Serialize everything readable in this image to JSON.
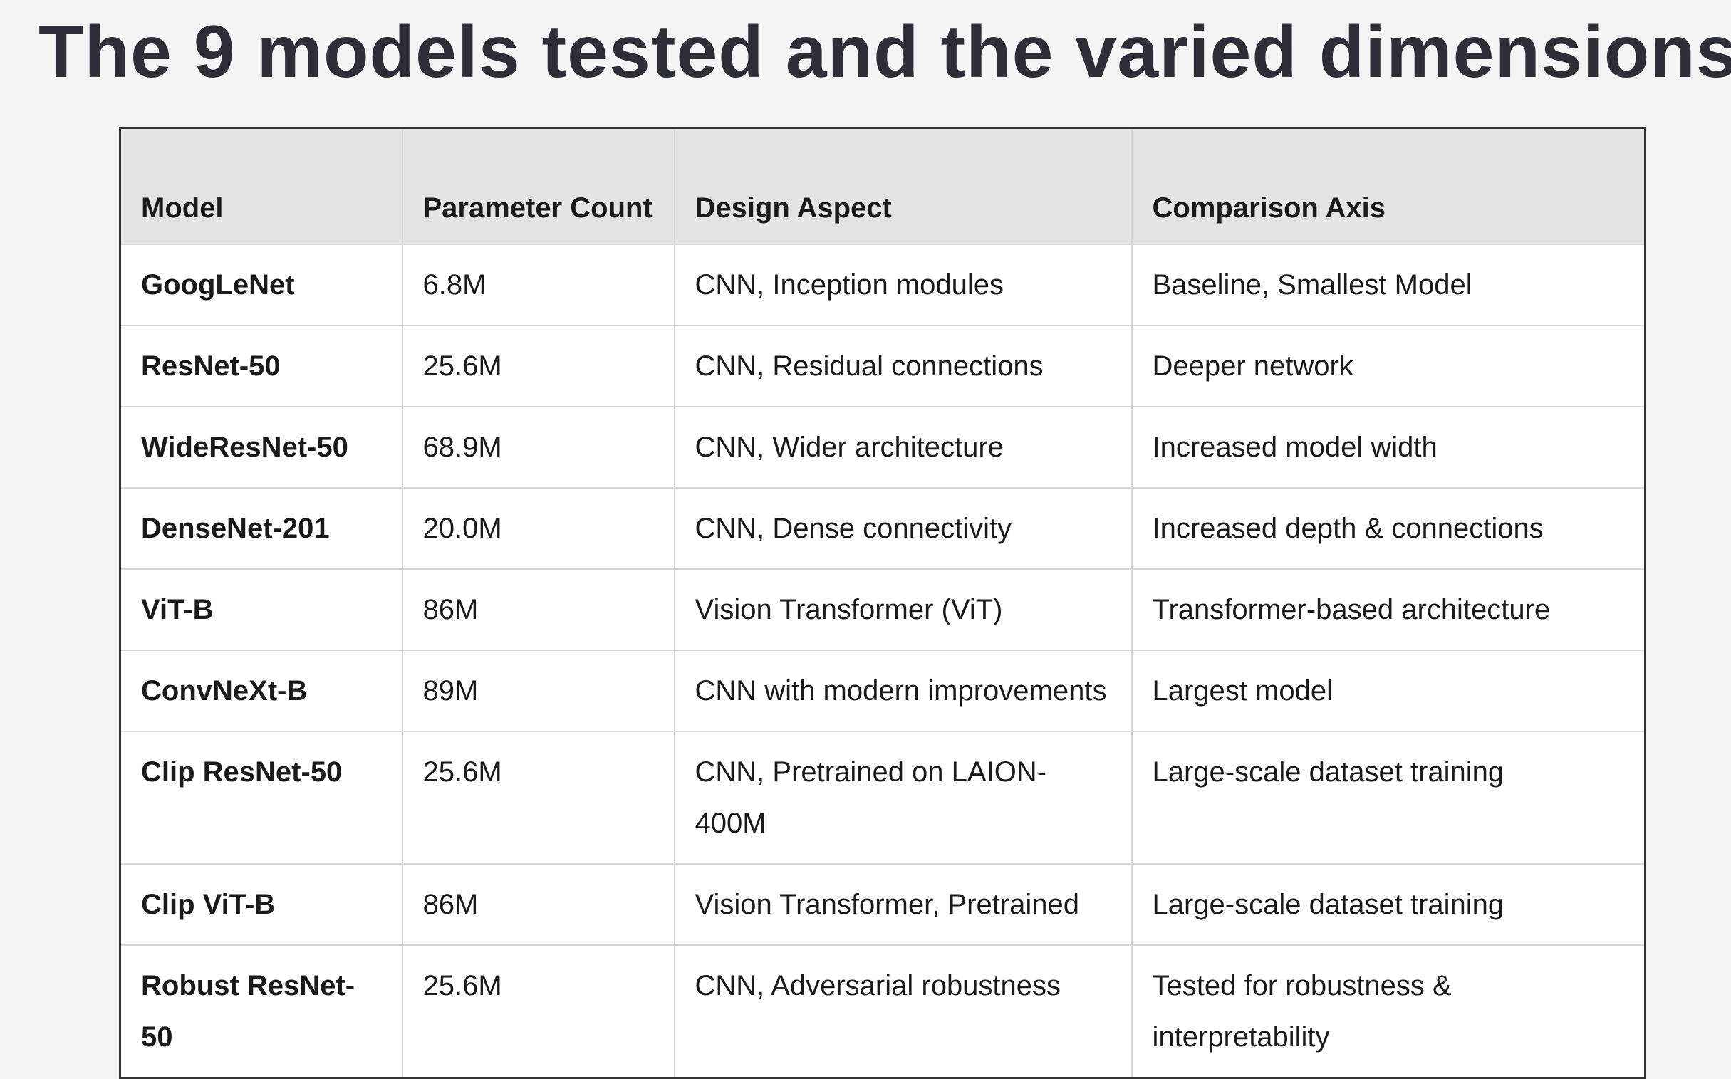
{
  "header": {
    "title": "The 9 models tested and the varied dimensions"
  },
  "table": {
    "columns": [
      "Model",
      "Parameter Count",
      "Design Aspect",
      "Comparison Axis"
    ],
    "rows": [
      [
        "GoogLeNet",
        "6.8M",
        "CNN, Inception modules",
        "Baseline, Smallest Model"
      ],
      [
        "ResNet-50",
        "25.6M",
        "CNN, Residual connections",
        "Deeper network"
      ],
      [
        "WideResNet-50",
        "68.9M",
        "CNN, Wider architecture",
        "Increased model width"
      ],
      [
        "DenseNet-201",
        "20.0M",
        "CNN, Dense connectivity",
        "Increased depth & connections"
      ],
      [
        "ViT-B",
        "86M",
        "Vision Transformer (ViT)",
        "Transformer-based architecture"
      ],
      [
        "ConvNeXt-B",
        "89M",
        "CNN with modern improvements",
        "Largest model"
      ],
      [
        "Clip ResNet-50",
        "25.6M",
        "CNN, Pretrained on LAION-400M",
        "Large-scale dataset training"
      ],
      [
        "Clip ViT-B",
        "86M",
        "Vision Transformer, Pretrained",
        "Large-scale dataset training"
      ],
      [
        "Robust ResNet-50",
        "25.6M",
        "CNN, Adversarial robustness",
        "Tested for robustness & interpretability"
      ]
    ]
  }
}
